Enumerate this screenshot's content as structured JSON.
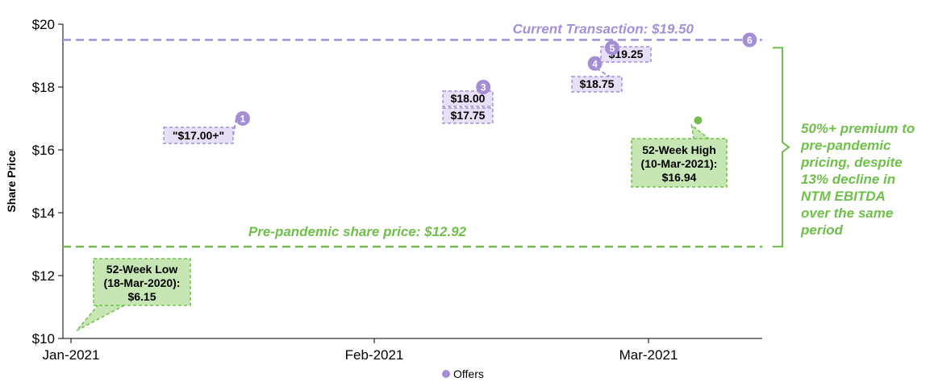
{
  "chart_data": {
    "type": "scatter",
    "ylabel": "Share Price",
    "ylim": [
      10,
      20
    ],
    "y_ticks": [
      "$10",
      "$12",
      "$14",
      "$16",
      "$18",
      "$20"
    ],
    "x_ticks": [
      "Jan-2021",
      "Feb-2021",
      "Mar-2021"
    ],
    "x_range": [
      "2021-01-01",
      "2021-03-22"
    ],
    "legend": {
      "position": "bottom",
      "label": "Offers"
    },
    "colors": {
      "offer": "#a48fd6",
      "offer_box": "#e6dff5",
      "green": "#6fbf4a",
      "green_box": "#c6e6b4"
    },
    "offers": [
      {
        "num": "1",
        "date": "2021-01-21",
        "price": 17.0,
        "label": "\"$17.00+\""
      },
      {
        "num": "2",
        "date": "2021-02-18",
        "price": 17.75,
        "label": "$17.75"
      },
      {
        "num": "3",
        "date": "2021-02-18",
        "price": 18.0,
        "label": "$18.00"
      },
      {
        "num": "4",
        "date": "2021-03-03",
        "price": 18.75,
        "label": "$18.75"
      },
      {
        "num": "5",
        "date": "2021-03-05",
        "price": 19.25,
        "label": "$19.25"
      },
      {
        "num": "6",
        "date": "2021-03-21",
        "price": 19.5,
        "label": ""
      }
    ],
    "high": {
      "date": "2021-03-15",
      "price": 16.94,
      "lines": [
        "52-Week High",
        "(10-Mar-2021):",
        "$16.94"
      ]
    },
    "low": {
      "date": "2021-01-01",
      "price": 10.25,
      "lines": [
        "52-Week Low",
        "(18-Mar-2020):",
        "$6.15"
      ]
    },
    "current_transaction": {
      "price": 19.5,
      "label": "Current Transaction: $19.50"
    },
    "pre_pandemic": {
      "price": 12.92,
      "label": "Pre-pandemic share price: $12.92"
    },
    "premium_note": [
      "50%+ premium to",
      "pre-pandemic",
      "pricing, despite",
      "13% decline in",
      "NTM EBITDA",
      "over the same",
      "period"
    ]
  }
}
